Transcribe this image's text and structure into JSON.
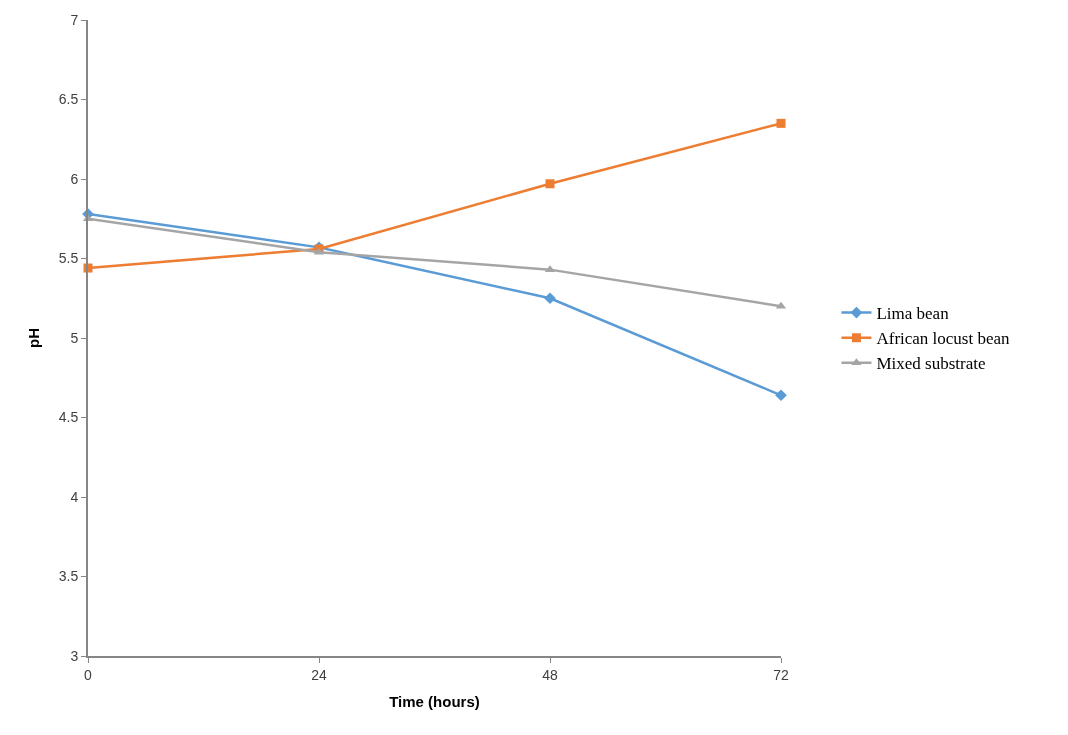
{
  "chart_data": {
    "type": "line",
    "xlabel": "Time (hours)",
    "ylabel": "pH",
    "x": [
      0,
      24,
      48,
      72
    ],
    "series": [
      {
        "name": "Lima bean",
        "color": "#5b9bd5",
        "marker": "diamond",
        "values": [
          5.78,
          5.57,
          5.25,
          4.64
        ]
      },
      {
        "name": "African locust bean",
        "color": "#ed7d31",
        "marker": "square",
        "values": [
          5.44,
          5.56,
          5.97,
          6.35
        ]
      },
      {
        "name": "Mixed substrate",
        "color": "#a5a5a5",
        "marker": "triangle",
        "values": [
          5.75,
          5.54,
          5.43,
          5.2
        ]
      }
    ],
    "xlim": [
      0,
      72
    ],
    "xticks": [
      0,
      24,
      48,
      72
    ],
    "ylim": [
      3,
      7
    ],
    "yticks": [
      3,
      3.5,
      4,
      4.5,
      5,
      5.5,
      6,
      6.5,
      7
    ],
    "legend": "right"
  }
}
